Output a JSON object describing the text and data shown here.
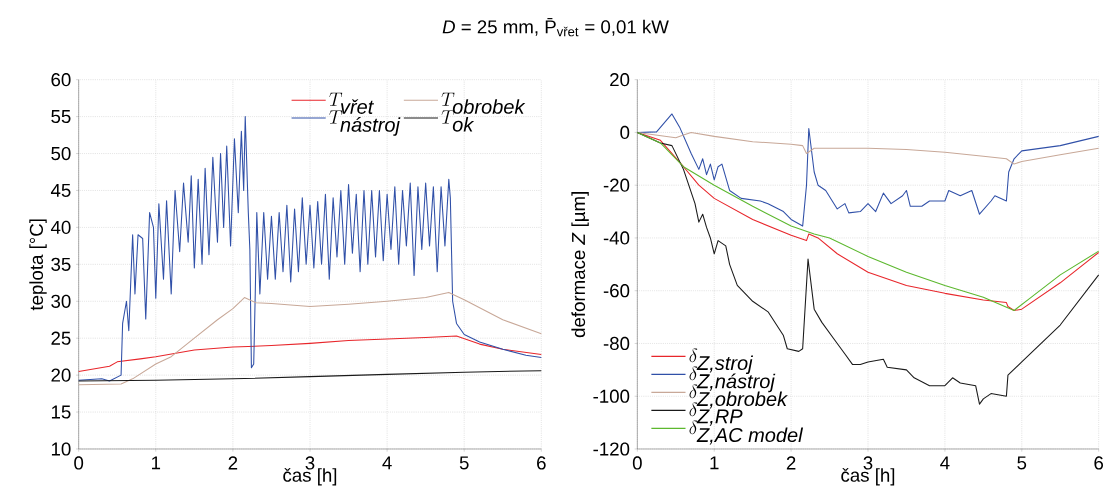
{
  "chart_data": [
    {
      "type": "line",
      "title": "*D* = 25 mm, P̄$_{vřet}$ = 0,01 kW",
      "xlabel": "čas [h]",
      "ylabel": "teplota [°C]",
      "xlim": [
        0,
        6
      ],
      "ylim": [
        10,
        60
      ],
      "xticks": [
        0,
        1,
        2,
        3,
        4,
        5,
        6
      ],
      "yticks": [
        10,
        15,
        20,
        25,
        30,
        35,
        40,
        45,
        50,
        55,
        60
      ],
      "grid": true,
      "legend": "top right",
      "series": [
        {
          "name": "T_{\\mbox{\\itshape vřet}}",
          "color": "#e8262b",
          "x": [
            0,
            0.4,
            0.5,
            0.8,
            1.0,
            1.5,
            2.0,
            2.5,
            3.0,
            3.5,
            4.0,
            4.5,
            4.9,
            5.2,
            5.5,
            6.0
          ],
          "values": [
            20.5,
            21.2,
            21.8,
            22.2,
            22.5,
            23.4,
            23.8,
            24.0,
            24.3,
            24.7,
            24.9,
            25.1,
            25.3,
            24.2,
            23.5,
            22.8
          ]
        },
        {
          "name": "T_{\\mbox{\\itshape nástroj}}",
          "color": "#3050a8",
          "x": [
            0,
            0.3,
            0.4,
            0.55,
            0.57,
            0.62,
            0.65,
            0.7,
            0.73,
            0.77,
            0.83,
            0.87,
            0.92,
            0.97,
            1.0,
            1.04,
            1.1,
            1.14,
            1.2,
            1.25,
            1.31,
            1.36,
            1.42,
            1.46,
            1.5,
            1.55,
            1.6,
            1.64,
            1.69,
            1.74,
            1.8,
            1.84,
            1.88,
            1.92,
            1.97,
            2.02,
            2.07,
            2.11,
            2.14,
            2.16,
            2.2,
            2.22,
            2.24,
            2.27,
            2.29,
            2.31,
            2.35,
            2.4,
            2.45,
            2.5,
            2.55,
            2.6,
            2.65,
            2.7,
            2.75,
            2.8,
            2.85,
            2.9,
            2.95,
            3.0,
            3.05,
            3.1,
            3.15,
            3.2,
            3.25,
            3.3,
            3.35,
            3.4,
            3.45,
            3.5,
            3.55,
            3.6,
            3.65,
            3.7,
            3.75,
            3.8,
            3.85,
            3.9,
            3.95,
            4.0,
            4.05,
            4.1,
            4.15,
            4.2,
            4.25,
            4.3,
            4.35,
            4.4,
            4.45,
            4.5,
            4.55,
            4.6,
            4.65,
            4.7,
            4.75,
            4.8,
            4.82,
            4.85,
            4.9,
            5.0,
            5.2,
            5.5,
            5.8,
            6.0
          ],
          "values": [
            19.3,
            19.5,
            19.2,
            20,
            27,
            30,
            26,
            39,
            31,
            39,
            38.5,
            27.6,
            42,
            40,
            30.4,
            43.2,
            33,
            43.6,
            31,
            45,
            36.7,
            46,
            38,
            47,
            34.5,
            46.5,
            35,
            48,
            36.3,
            49.5,
            38,
            50,
            40,
            51,
            37.5,
            52,
            42,
            53,
            45,
            55,
            42,
            37,
            21,
            21.5,
            31,
            42,
            31,
            42,
            33,
            41.5,
            33,
            42,
            34,
            43,
            32.6,
            42.5,
            34,
            44,
            35,
            43,
            34.5,
            43.5,
            35,
            44.5,
            33,
            44,
            36,
            45,
            35,
            45.8,
            36.5,
            44.5,
            34,
            45,
            35,
            45,
            36,
            45,
            35.5,
            44.5,
            37,
            45.5,
            35,
            45,
            37.5,
            46,
            33.5,
            45.5,
            37,
            46,
            37.5,
            45.5,
            34,
            45.5,
            37.5,
            46.5,
            44,
            30,
            27,
            25.5,
            24.5,
            23.5,
            22.7,
            22.4
          ]
        },
        {
          "name": "T_{\\mbox{\\itshape obrobek}}",
          "color": "#c8a898",
          "x": [
            0,
            0.55,
            0.7,
            1.0,
            1.2,
            1.5,
            1.8,
            2.0,
            2.15,
            2.3,
            2.5,
            3.0,
            3.5,
            4.0,
            4.5,
            4.8,
            5.0,
            5.5,
            6.0
          ],
          "values": [
            18.7,
            18.8,
            19.5,
            21.5,
            22.5,
            25,
            27.5,
            29,
            30.5,
            29.8,
            29.7,
            29.3,
            29.6,
            30.0,
            30.5,
            31.2,
            30.2,
            27.5,
            25.6
          ]
        },
        {
          "name": "T_{\\mbox{\\itshape ok}}",
          "color": "#1a1a1a",
          "x": [
            0,
            1,
            2,
            3,
            4,
            5,
            6
          ],
          "values": [
            19.2,
            19.3,
            19.5,
            19.8,
            20.1,
            20.4,
            20.6
          ]
        }
      ]
    },
    {
      "type": "line",
      "xlabel": "čas [h]",
      "ylabel": "deformace *Z* [µm]",
      "xlim": [
        0,
        6
      ],
      "ylim": [
        -120,
        20
      ],
      "xticks": [
        0,
        1,
        2,
        3,
        4,
        5,
        6
      ],
      "yticks": [
        -120,
        -100,
        -80,
        -60,
        -40,
        -20,
        0,
        20
      ],
      "grid": true,
      "legend": "bottom left",
      "series": [
        {
          "name": "\\delta_{\\mbox{\\itshape Z,stroj}}",
          "color": "#e8262b",
          "x": [
            0,
            0.3,
            0.6,
            0.8,
            1.0,
            1.5,
            2.0,
            2.2,
            2.23,
            2.35,
            2.6,
            3.0,
            3.5,
            4.0,
            4.5,
            4.8,
            4.82,
            4.9,
            5.0,
            5.5,
            6.0
          ],
          "values": [
            0,
            -3,
            -13,
            -20,
            -25,
            -33,
            -39,
            -41,
            -38.5,
            -40,
            -46,
            -53,
            -58,
            -61,
            -63.5,
            -64.5,
            -66,
            -67.5,
            -67,
            -57,
            -45.5
          ]
        },
        {
          "name": "\\delta_{\\mbox{\\itshape Z,nástroj}}",
          "color": "#3050a8",
          "x": [
            0,
            0.25,
            0.45,
            0.55,
            0.7,
            0.8,
            0.85,
            0.9,
            0.95,
            1.0,
            1.05,
            1.1,
            1.2,
            1.35,
            1.6,
            1.7,
            1.9,
            2.0,
            2.15,
            2.2,
            2.23,
            2.3,
            2.35,
            2.45,
            2.6,
            2.7,
            2.75,
            2.9,
            3.0,
            3.1,
            3.2,
            3.3,
            3.45,
            3.5,
            3.55,
            3.7,
            3.8,
            4.0,
            4.05,
            4.2,
            4.35,
            4.45,
            4.6,
            4.65,
            4.8,
            4.83,
            4.9,
            5.0,
            5.5,
            6.0
          ],
          "values": [
            0,
            0.2,
            7,
            2,
            -8,
            -14,
            -10,
            -16,
            -12,
            -18,
            -13,
            -12,
            -22,
            -25,
            -26,
            -27,
            -30,
            -33,
            -35.5,
            -20,
            1.5,
            -15,
            -20,
            -22,
            -29,
            -27,
            -30.5,
            -30,
            -27,
            -30,
            -23,
            -27,
            -24,
            -22,
            -28,
            -28,
            -26,
            -26,
            -22,
            -24,
            -22,
            -31,
            -26,
            -24,
            -26,
            -15,
            -10,
            -7,
            -5,
            -1.5
          ]
        },
        {
          "name": "\\delta_{\\mbox{\\itshape Z,obrobek}}",
          "color": "#c8a898",
          "x": [
            0,
            0.5,
            0.6,
            0.7,
            1.0,
            1.5,
            2.0,
            2.15,
            2.2,
            2.3,
            3.0,
            3.5,
            4.0,
            4.5,
            4.8,
            4.9,
            5.0,
            5.5,
            6.0
          ],
          "values": [
            0,
            -2,
            -1,
            0,
            -1.5,
            -3.5,
            -4.5,
            -5,
            -8,
            -6,
            -6,
            -6.5,
            -7.5,
            -9,
            -10,
            -12,
            -11,
            -8.5,
            -6
          ]
        },
        {
          "name": "\\delta_{\\mbox{\\itshape Z,RP}}",
          "color": "#1a1a1a",
          "x": [
            0,
            0.3,
            0.45,
            0.6,
            0.75,
            0.8,
            0.85,
            0.9,
            0.95,
            1.0,
            1.05,
            1.15,
            1.2,
            1.3,
            1.5,
            1.7,
            1.9,
            1.95,
            2.1,
            2.15,
            2.22,
            2.3,
            2.4,
            2.55,
            2.7,
            2.8,
            2.9,
            3.0,
            3.2,
            3.25,
            3.5,
            3.6,
            3.8,
            4.0,
            4.1,
            4.2,
            4.4,
            4.45,
            4.5,
            4.6,
            4.8,
            4.82,
            5.0,
            5.5,
            6.0
          ],
          "values": [
            0,
            -4,
            -5,
            -14,
            -27,
            -34,
            -31,
            -36,
            -40,
            -46,
            -41,
            -43,
            -50,
            -58,
            -64,
            -68,
            -77,
            -82,
            -83,
            -82,
            -48,
            -67,
            -72,
            -78,
            -84,
            -88,
            -88,
            -87,
            -86,
            -89,
            -90,
            -93,
            -96,
            -96,
            -93,
            -95,
            -96,
            -103,
            -101,
            -99,
            -100,
            -92,
            -87,
            -73,
            -54
          ]
        },
        {
          "name": "\\delta_{\\mbox{\\itshape Z,AC model}}",
          "color": "#5cb82e",
          "x": [
            0,
            0.3,
            0.6,
            1.0,
            1.5,
            2.0,
            2.3,
            2.5,
            3.0,
            3.5,
            4.0,
            4.5,
            4.9,
            5.1,
            5.5,
            6.0
          ],
          "values": [
            0,
            -4,
            -13,
            -20,
            -28,
            -35.5,
            -38.5,
            -40,
            -47,
            -53,
            -58,
            -62.5,
            -67.5,
            -63,
            -54,
            -45
          ]
        }
      ]
    }
  ]
}
